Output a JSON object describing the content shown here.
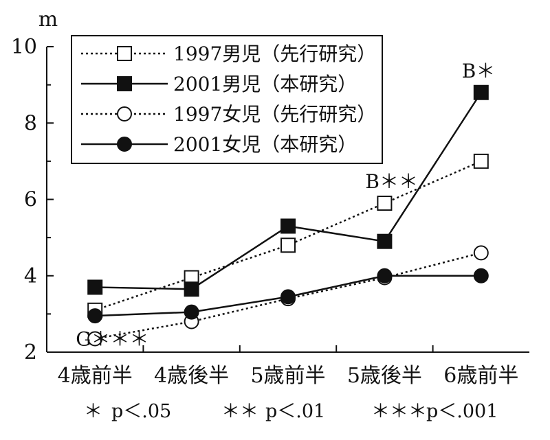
{
  "chart_data": {
    "type": "line",
    "ylabel": "m",
    "ylim": [
      2,
      10
    ],
    "yticks": [
      2,
      4,
      6,
      8,
      10
    ],
    "categories": [
      "4歳前半",
      "4歳後半",
      "5歳前半",
      "5歳後半",
      "6歳前半"
    ],
    "series": [
      {
        "name": "1997男児（先行研究）",
        "line": "dotted",
        "marker": "open-square",
        "values": [
          3.1,
          3.95,
          4.8,
          5.9,
          7.0
        ]
      },
      {
        "name": "2001男児（本研究）",
        "line": "solid",
        "marker": "filled-square",
        "values": [
          3.7,
          3.65,
          5.3,
          4.9,
          8.8
        ]
      },
      {
        "name": "1997女児（先行研究）",
        "line": "dotted",
        "marker": "open-circle",
        "values": [
          2.35,
          2.8,
          3.4,
          3.95,
          4.6
        ]
      },
      {
        "name": "2001女児（本研究）",
        "line": "solid",
        "marker": "filled-circle",
        "values": [
          2.95,
          3.05,
          3.45,
          4.0,
          4.0
        ]
      }
    ],
    "annotations": [
      {
        "label": "G＊＊＊",
        "category_index": 0,
        "series_index": 2
      },
      {
        "label": "B＊＊",
        "category_index": 3,
        "series_index": 0
      },
      {
        "label": "B＊",
        "category_index": 4,
        "series_index": 1
      }
    ],
    "legend_position": "top-left",
    "grid": false
  },
  "footnote": {
    "items": [
      {
        "stars": "＊",
        "text": "p＜.05"
      },
      {
        "stars": "＊＊",
        "text": "p＜.01"
      },
      {
        "stars": "＊＊＊",
        "text": "p＜.001"
      }
    ]
  }
}
